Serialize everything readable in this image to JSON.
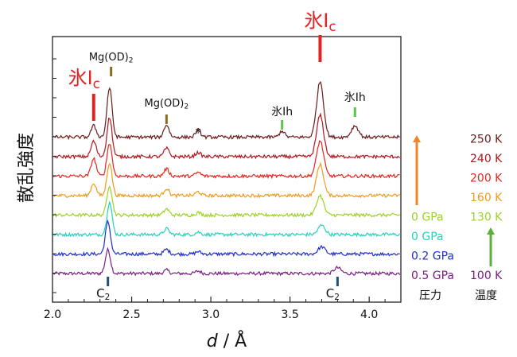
{
  "chart_data": {
    "type": "line",
    "title": "",
    "xlabel_italic": "d",
    "xlabel_rest": " / Å",
    "ylabel": "散乱強度",
    "xlim": [
      2.0,
      4.2
    ],
    "x_ticks": [
      "2.0",
      "2.5",
      "3.0",
      "3.5",
      "4.0"
    ],
    "x_tick_values": [
      2.0,
      2.5,
      3.0,
      3.5,
      4.0
    ],
    "series": [
      {
        "pressure": "0.5 GPa",
        "temperature": "100 K",
        "color": "#7a1e82",
        "peaks": [
          {
            "x": 2.35,
            "h": 1.15
          },
          {
            "x": 2.72,
            "h": 0.16
          },
          {
            "x": 2.92,
            "h": 0.12
          },
          {
            "x": 3.8,
            "h": 0.28
          }
        ]
      },
      {
        "pressure": "0.2 GPa",
        "temperature": "",
        "color": "#1f2fcc",
        "peaks": [
          {
            "x": 2.35,
            "h": 1.55
          },
          {
            "x": 2.72,
            "h": 0.22
          },
          {
            "x": 2.92,
            "h": 0.12
          },
          {
            "x": 3.7,
            "h": 0.35
          }
        ]
      },
      {
        "pressure": "0 GPa",
        "temperature": "",
        "color": "#22d3c0",
        "peaks": [
          {
            "x": 2.36,
            "h": 1.55
          },
          {
            "x": 2.72,
            "h": 0.28
          },
          {
            "x": 2.92,
            "h": 0.12
          },
          {
            "x": 3.7,
            "h": 0.45
          }
        ]
      },
      {
        "pressure": "0 GPa",
        "temperature": "130 K",
        "color": "#9cd323",
        "peaks": [
          {
            "x": 2.36,
            "h": 1.45
          },
          {
            "x": 2.72,
            "h": 0.3
          },
          {
            "x": 2.92,
            "h": 0.12
          },
          {
            "x": 3.69,
            "h": 0.95
          }
        ]
      },
      {
        "pressure": "",
        "temperature": "160 K",
        "color": "#f39a1b",
        "peaks": [
          {
            "x": 2.26,
            "h": 0.6
          },
          {
            "x": 2.36,
            "h": 1.6
          },
          {
            "x": 2.72,
            "h": 0.35
          },
          {
            "x": 2.92,
            "h": 0.18
          },
          {
            "x": 3.69,
            "h": 1.5
          }
        ]
      },
      {
        "pressure": "",
        "temperature": "200 K",
        "color": "#e8251c",
        "peaks": [
          {
            "x": 2.26,
            "h": 0.85
          },
          {
            "x": 2.36,
            "h": 1.6
          },
          {
            "x": 2.72,
            "h": 0.35
          },
          {
            "x": 2.92,
            "h": 0.18
          },
          {
            "x": 3.69,
            "h": 1.7
          }
        ]
      },
      {
        "pressure": "",
        "temperature": "240 K",
        "color": "#b5141c",
        "peaks": [
          {
            "x": 2.26,
            "h": 0.75
          },
          {
            "x": 2.36,
            "h": 1.9
          },
          {
            "x": 2.72,
            "h": 0.4
          },
          {
            "x": 2.92,
            "h": 0.2
          },
          {
            "x": 3.69,
            "h": 2.0
          }
        ]
      },
      {
        "pressure": "",
        "temperature": "250 K",
        "color": "#6b1a1c",
        "peaks": [
          {
            "x": 2.26,
            "h": 0.55
          },
          {
            "x": 2.36,
            "h": 2.4
          },
          {
            "x": 2.72,
            "h": 0.6
          },
          {
            "x": 2.92,
            "h": 0.35
          },
          {
            "x": 3.45,
            "h": 0.3
          },
          {
            "x": 3.69,
            "h": 2.7
          },
          {
            "x": 3.91,
            "h": 0.55
          }
        ]
      }
    ],
    "annotations": [
      {
        "type": "phase",
        "main": "氷I",
        "sub": "c",
        "x": 2.26,
        "color": "#e32222",
        "size": "large",
        "row": "high"
      },
      {
        "type": "phase",
        "main": "氷I",
        "sub": "c",
        "x": 3.69,
        "color": "#e32222",
        "size": "large",
        "row": "top"
      },
      {
        "type": "text",
        "main": "Mg(OD)",
        "sub": "2",
        "x": 2.37,
        "color": "#111111",
        "marker_color": "#8a6d1e"
      },
      {
        "type": "text",
        "main": "Mg(OD)",
        "sub": "2",
        "x": 2.72,
        "color": "#111111",
        "marker_color": "#8a6d1e"
      },
      {
        "type": "text",
        "main": "*",
        "sub": "",
        "x": 2.92,
        "color": "#111111"
      },
      {
        "type": "text",
        "main": "氷Ih",
        "sub": "",
        "x": 3.45,
        "color": "#111111",
        "marker_color": "#5cc24a"
      },
      {
        "type": "text",
        "main": "氷Ih",
        "sub": "",
        "x": 3.91,
        "color": "#111111",
        "marker_color": "#5cc24a"
      },
      {
        "type": "bottom",
        "main": "C",
        "sub": "2",
        "x": 2.35,
        "color": "#111111",
        "marker_color": "#1f4f7a"
      },
      {
        "type": "bottom",
        "main": "C",
        "sub": "2",
        "x": 3.8,
        "color": "#111111",
        "marker_color": "#1f4f7a"
      }
    ],
    "legend": {
      "pressure_header": "圧力",
      "temperature_header": "温度",
      "pressure_arrow_color": "#f0872a",
      "temperature_arrow_color": "#5cae3d"
    }
  }
}
